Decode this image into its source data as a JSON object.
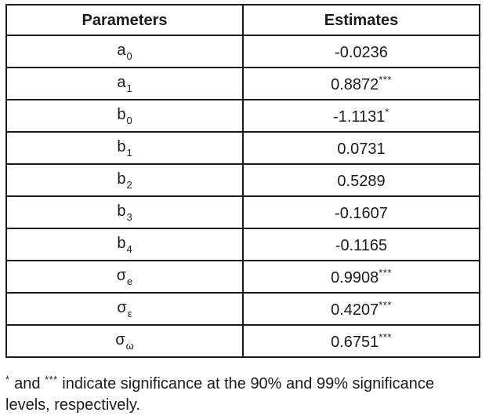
{
  "colors": {
    "text": "#1b1b1b",
    "border": "#1b1b1b",
    "background": "#ffffff"
  },
  "table": {
    "headers": {
      "parameters": "Parameters",
      "estimates": "Estimates"
    },
    "rows": [
      {
        "param": "a",
        "sub": "0",
        "value": "-0.0236",
        "stars": ""
      },
      {
        "param": "a",
        "sub": "1",
        "value": "0.8872",
        "stars": "***"
      },
      {
        "param": "b",
        "sub": "0",
        "value": "-1.1131",
        "stars": "*"
      },
      {
        "param": "b",
        "sub": "1",
        "value": "0.0731",
        "stars": ""
      },
      {
        "param": "b",
        "sub": "2",
        "value": "0.5289",
        "stars": ""
      },
      {
        "param": "b",
        "sub": "3",
        "value": "-0.1607",
        "stars": ""
      },
      {
        "param": "b",
        "sub": "4",
        "value": "-0.1165",
        "stars": ""
      },
      {
        "param": "σ",
        "sub": "e",
        "value": "0.9908",
        "stars": "***"
      },
      {
        "param": "σ",
        "sub": "ε",
        "value": "0.4207",
        "stars": "***"
      },
      {
        "param": "σ",
        "sub": "ω",
        "value": "0.6751",
        "stars": "***"
      }
    ]
  },
  "footnote": {
    "star_single": "*",
    "join_text": " and ",
    "star_triple": "***",
    "line1_rest": " indicate significance at the 90% and 99% significance",
    "line2": "levels, respectively."
  },
  "chart_data": {
    "type": "table",
    "title": "",
    "columns": [
      "Parameters",
      "Estimates"
    ],
    "rows": [
      [
        "a_0",
        "-0.0236"
      ],
      [
        "a_1",
        "0.8872***"
      ],
      [
        "b_0",
        "-1.1131*"
      ],
      [
        "b_1",
        "0.0731"
      ],
      [
        "b_2",
        "0.5289"
      ],
      [
        "b_3",
        "-0.1607"
      ],
      [
        "b_4",
        "-0.1165"
      ],
      [
        "sigma_e",
        "0.9908***"
      ],
      [
        "sigma_epsilon",
        "0.4207***"
      ],
      [
        "sigma_omega",
        "0.6751***"
      ]
    ],
    "note": "* and *** indicate significance at the 90% and 99% significance levels, respectively."
  }
}
